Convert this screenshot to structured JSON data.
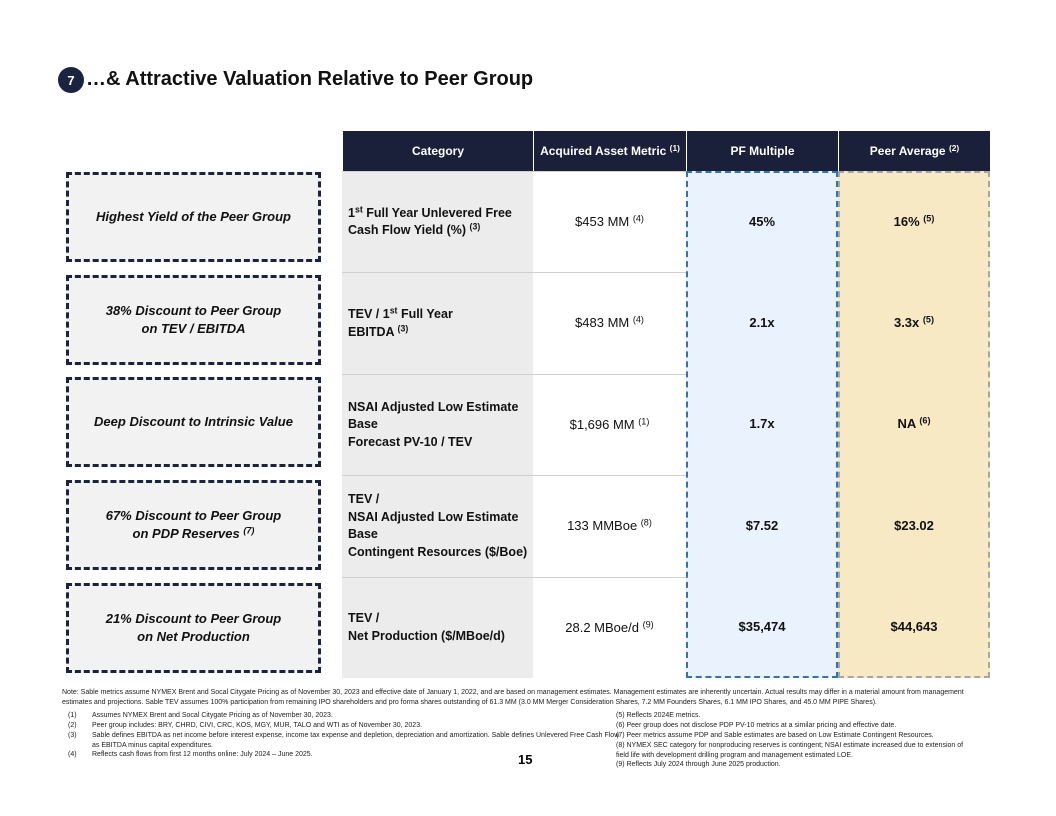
{
  "header": {
    "badge": "7",
    "title": "…& Attractive Valuation Relative to Peer Group"
  },
  "callouts": [
    [
      [
        "Highest Yield of the Peer Group"
      ]
    ],
    [
      [
        "38% Discount to Peer Group"
      ],
      [
        "on TEV / EBITDA"
      ]
    ],
    [
      [
        "Deep Discount to Intrinsic Value"
      ]
    ],
    [
      [
        "67% Discount to Peer Group"
      ],
      [
        "on PDP Reserves ",
        {
          "sup": "(7)"
        }
      ]
    ],
    [
      [
        "21% Discount to Peer Group"
      ],
      [
        "on Net Production"
      ]
    ]
  ],
  "table": {
    "columns": [
      [
        [
          "Category"
        ]
      ],
      [
        [
          "Acquired Asset Metric ",
          {
            "sup": "(1)"
          }
        ]
      ],
      [
        [
          "PF Multiple"
        ]
      ],
      [
        [
          "Peer Average ",
          {
            "sup": "(2)"
          }
        ]
      ]
    ],
    "rows": [
      [
        [
          [
            "1",
            {
              "sup": "st"
            },
            " Full Year Unlevered Free"
          ],
          [
            "Cash Flow Yield (%) ",
            {
              "sup": "(3)"
            }
          ]
        ],
        [
          [
            "$453 MM ",
            {
              "sup": "(4)"
            }
          ]
        ],
        [
          [
            "45%"
          ]
        ],
        [
          [
            "16% ",
            {
              "sup": "(5)"
            }
          ]
        ]
      ],
      [
        [
          [
            "TEV / 1",
            {
              "sup": "st"
            },
            " Full Year"
          ],
          [
            "EBITDA ",
            {
              "sup": "(3)"
            }
          ]
        ],
        [
          [
            "$483 MM ",
            {
              "sup": "(4)"
            }
          ]
        ],
        [
          [
            "2.1x"
          ]
        ],
        [
          [
            "3.3x ",
            {
              "sup": "(5)"
            }
          ]
        ]
      ],
      [
        [
          [
            "NSAI Adjusted Low Estimate"
          ],
          [
            "Base"
          ],
          [
            "Forecast PV-10 / TEV"
          ]
        ],
        [
          [
            "$1,696 MM ",
            {
              "sup": "(1)"
            }
          ]
        ],
        [
          [
            "1.7x"
          ]
        ],
        [
          [
            "NA ",
            {
              "sup": "(6)"
            }
          ]
        ]
      ],
      [
        [
          [
            "TEV /"
          ],
          [
            "NSAI Adjusted Low Estimate"
          ],
          [
            "Base"
          ],
          [
            "Contingent Resources ($/Boe)"
          ]
        ],
        [
          [
            "133 MMBoe ",
            {
              "sup": "(8)"
            }
          ]
        ],
        [
          [
            "$7.52"
          ]
        ],
        [
          [
            "$23.02"
          ]
        ]
      ],
      [
        [
          [
            "TEV /"
          ],
          [
            "Net Production ($/MBoe/d)"
          ]
        ],
        [
          [
            "28.2 MBoe/d ",
            {
              "sup": "(9)"
            }
          ]
        ],
        [
          [
            "$35,474"
          ]
        ],
        [
          [
            "$44,643"
          ]
        ]
      ]
    ]
  },
  "footnotes": {
    "note": "Note: Sable metrics assume NYMEX Brent and Socal Citygate Pricing as of November 30, 2023 and effective date of January 1, 2022, and are based on management estimates. Management estimates are inherently uncertain. Actual results may differ in a material amount from management estimates and projections. Sable TEV assumes 100% participation from remaining IPO shareholders and pro forma shares outstanding of 61.3 MM (3.0 MM Merger Consideration Shares, 7.2 MM Founders Shares, 6.1 MM IPO Shares, and 45.0 MM PIPE Shares).",
    "left": [
      {
        "num": "(1)",
        "text": "Assumes NYMEX Brent and Socal Citygate Pricing as of November 30, 2023."
      },
      {
        "num": "(2)",
        "text": "Peer group includes: BRY, CHRD, CIVI, CRC, KOS, MGY, MUR, TALO and WTI as of November 30, 2023."
      },
      {
        "num": "(3)",
        "text": "Sable defines EBITDA as net income before interest expense, income tax expense and depletion, depreciation and amortization. Sable defines Unlevered Free Cash Flow as EBITDA minus capital expenditures."
      },
      {
        "num": "(4)",
        "text": "Reflects cash flows from first 12 months online: July 2024 – June 2025."
      }
    ],
    "right": [
      "(5) Reflects 2024E metrics.",
      "(6) Peer group does not disclose PDP PV-10 metrics at a similar pricing and effective date.",
      "(7) Peer metrics assume PDP and Sable estimates are based on Low Estimate Contingent Resources.",
      "(8) NYMEX SEC category for nonproducing reserves is contingent; NSAI estimate increased due to extension of field life with development drilling program and management estimated LOE.",
      "(9) Reflects July 2024 through June 2025 production."
    ]
  },
  "page_number": "15"
}
